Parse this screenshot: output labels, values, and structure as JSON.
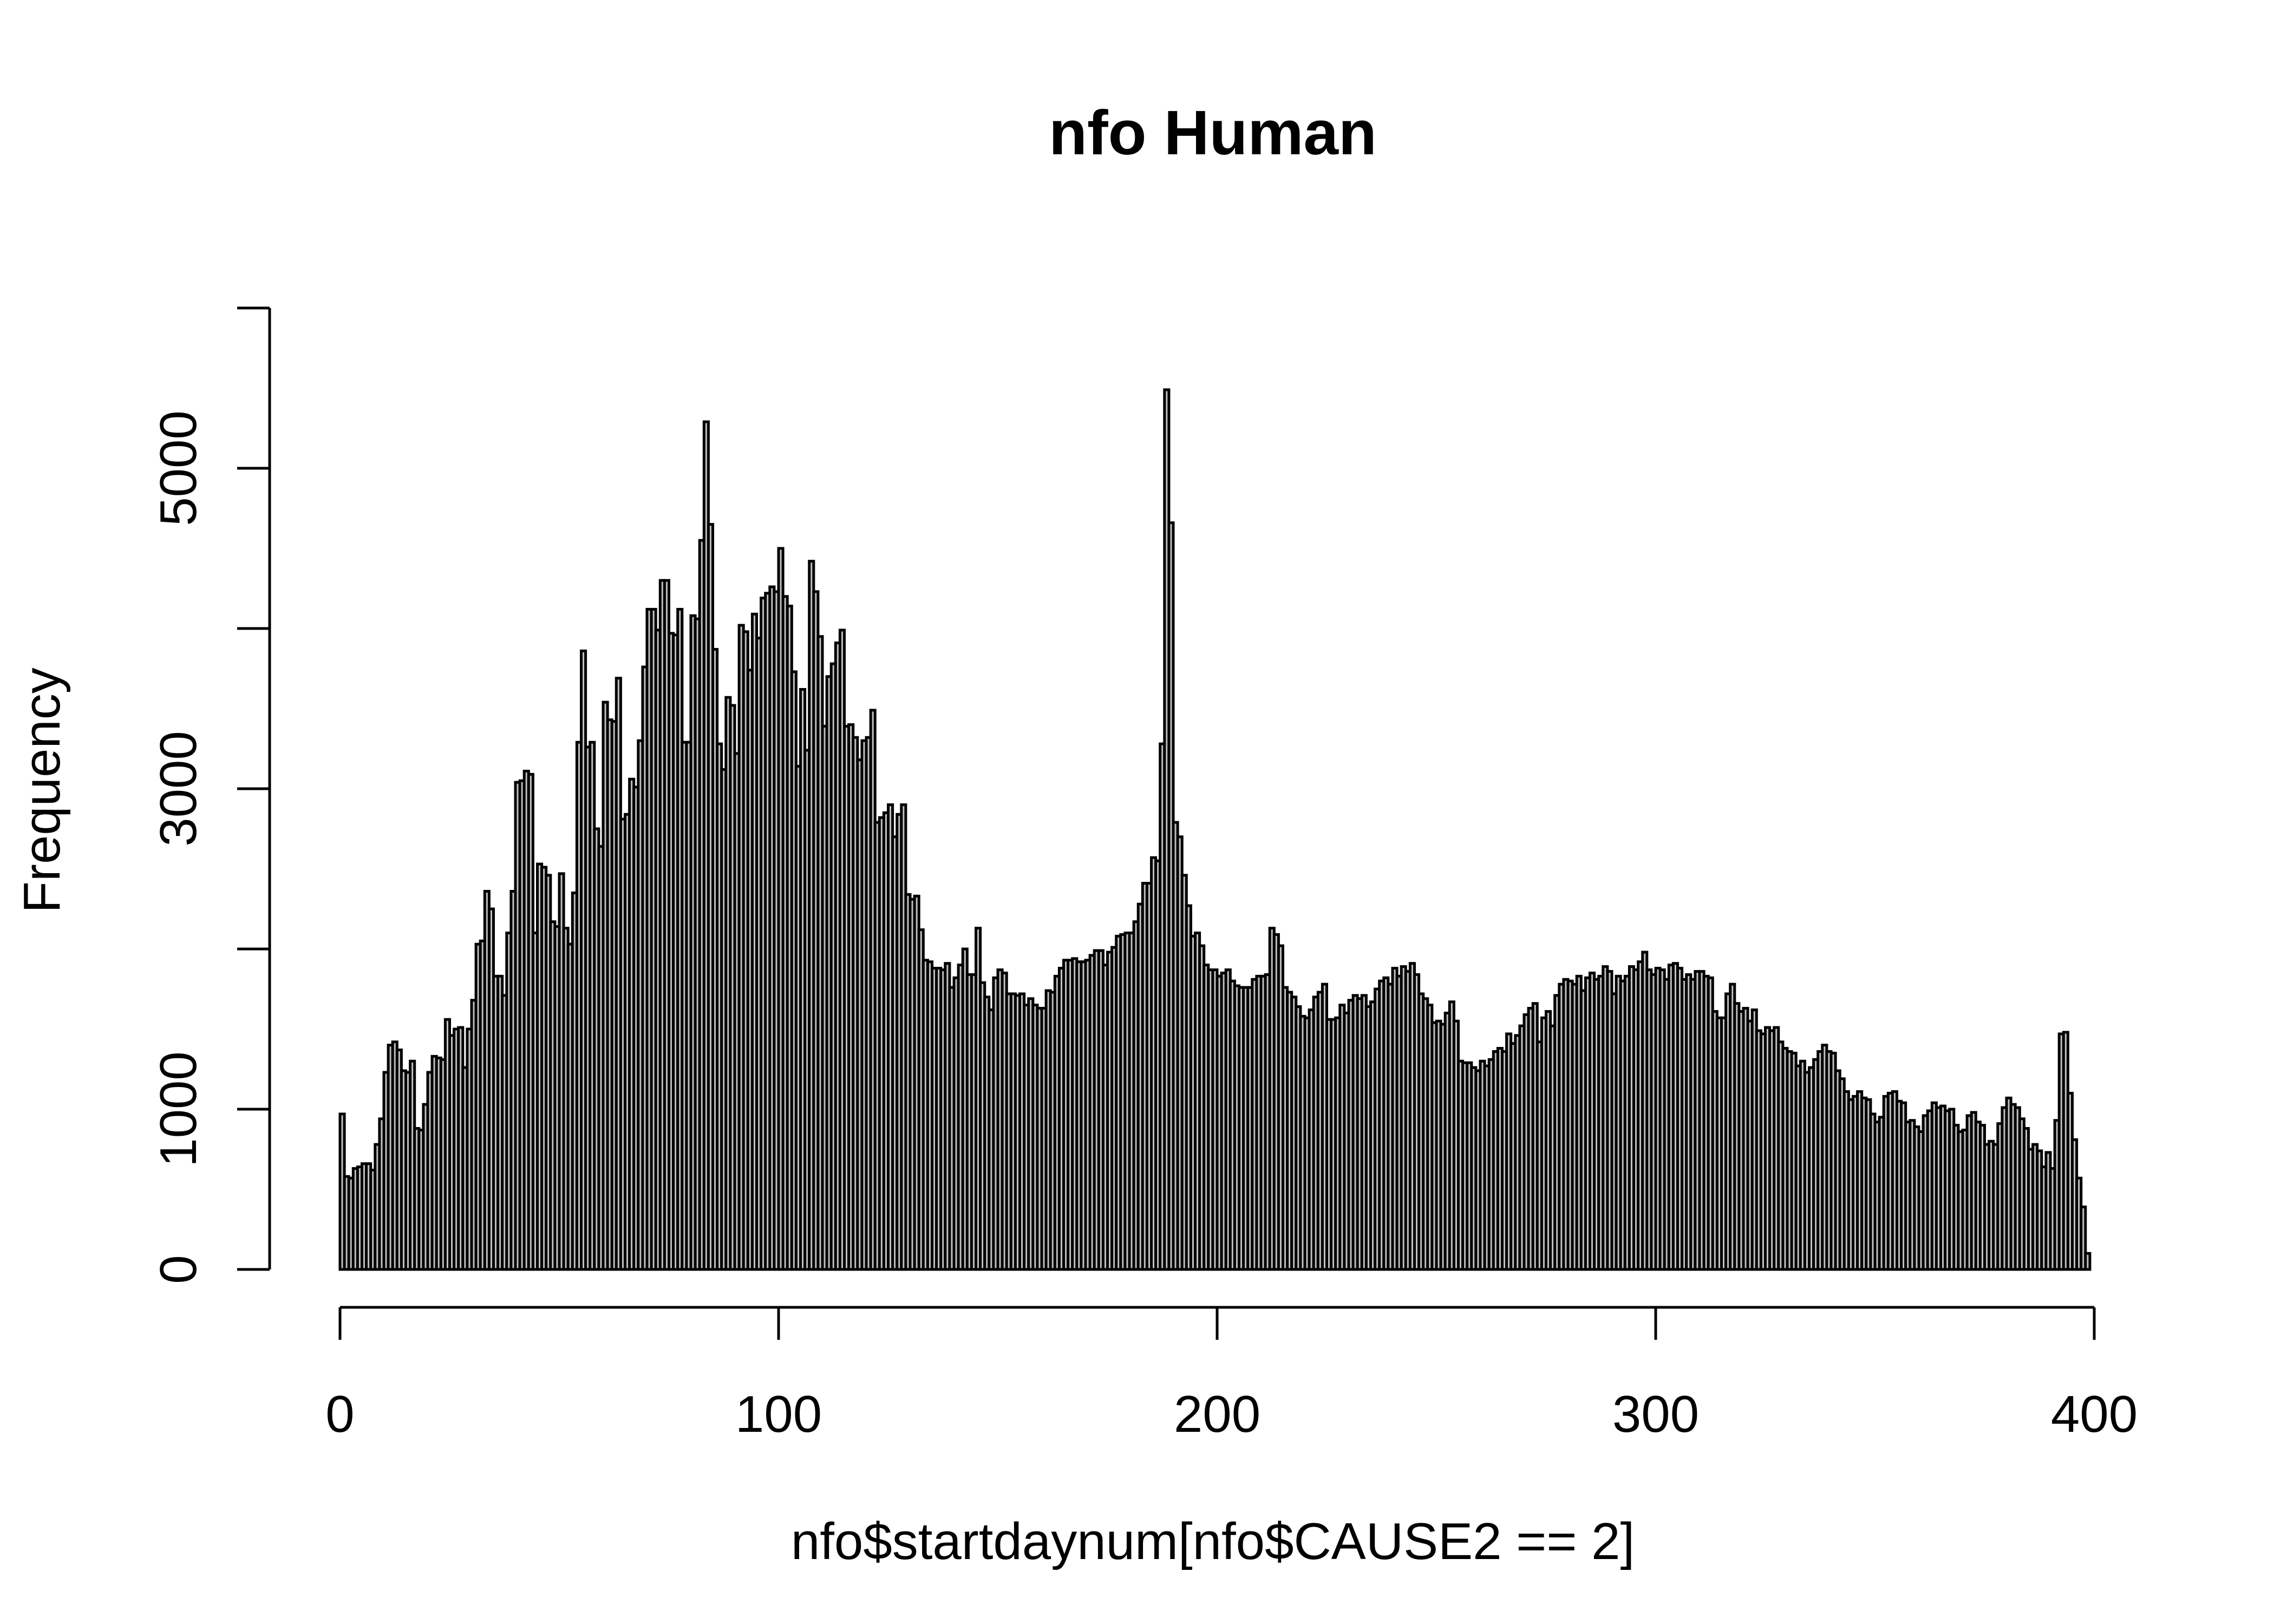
{
  "chart_data": {
    "type": "bar",
    "title": "nfo Human",
    "xlabel": "nfo$startdaynum[nfo$CAUSE2 == 2]",
    "ylabel": "Frequency",
    "xlim": [
      0,
      400
    ],
    "ylim": [
      0,
      6000
    ],
    "x_ticks": [
      "0",
      "100",
      "200",
      "300",
      "400"
    ],
    "y_ticks": [
      "0",
      "1000",
      "3000",
      "5000"
    ],
    "y_tick_values": [
      0,
      1000,
      2000,
      3000,
      4000,
      5000,
      6000
    ],
    "bin_width": 1,
    "bin_start": 0,
    "bar_color": "#bfbfbf",
    "border_color": "#000000",
    "grid": false,
    "values": [
      970,
      580,
      570,
      630,
      640,
      660,
      660,
      620,
      780,
      940,
      1230,
      1400,
      1420,
      1370,
      1240,
      1230,
      1300,
      880,
      870,
      1030,
      1230,
      1330,
      1320,
      1310,
      1560,
      1460,
      1500,
      1510,
      1260,
      1500,
      1680,
      2030,
      2050,
      2360,
      2250,
      1830,
      1830,
      1710,
      2100,
      2360,
      3040,
      3050,
      3110,
      3090,
      2100,
      2530,
      2510,
      2460,
      2170,
      2140,
      2470,
      2130,
      2030,
      2350,
      3290,
      3860,
      3260,
      3290,
      2750,
      2640,
      3540,
      3430,
      3420,
      3690,
      2810,
      2840,
      3060,
      3010,
      3300,
      3760,
      4120,
      4120,
      3990,
      4300,
      4300,
      3970,
      3960,
      4120,
      3290,
      3290,
      4080,
      4060,
      4550,
      5290,
      4650,
      3870,
      3280,
      3120,
      3570,
      3520,
      3220,
      4020,
      3980,
      3740,
      4090,
      3940,
      4190,
      4220,
      4260,
      4230,
      4500,
      4200,
      4140,
      3730,
      3140,
      3620,
      3240,
      4420,
      4230,
      3950,
      3390,
      3700,
      3780,
      3910,
      3990,
      3390,
      3400,
      3320,
      3180,
      3300,
      3320,
      3490,
      2790,
      2820,
      2850,
      2900,
      2700,
      2840,
      2900,
      2340,
      2310,
      2330,
      2120,
      1930,
      1920,
      1880,
      1880,
      1870,
      1910,
      1760,
      1820,
      1900,
      2000,
      1840,
      1840,
      2130,
      1790,
      1700,
      1620,
      1820,
      1870,
      1850,
      1720,
      1720,
      1710,
      1720,
      1650,
      1690,
      1650,
      1630,
      1630,
      1740,
      1730,
      1830,
      1880,
      1930,
      1930,
      1940,
      1920,
      1920,
      1930,
      1960,
      1990,
      1990,
      1900,
      1980,
      2010,
      2080,
      2090,
      2100,
      2100,
      2170,
      2280,
      2410,
      2410,
      2570,
      2550,
      3280,
      5490,
      4660,
      2790,
      2700,
      2460,
      2270,
      2080,
      2100,
      2020,
      1900,
      1870,
      1870,
      1830,
      1850,
      1870,
      1800,
      1770,
      1760,
      1760,
      1760,
      1810,
      1830,
      1830,
      1840,
      2130,
      2090,
      2020,
      1760,
      1730,
      1700,
      1640,
      1580,
      1570,
      1620,
      1700,
      1730,
      1780,
      1560,
      1560,
      1570,
      1650,
      1600,
      1680,
      1710,
      1690,
      1710,
      1640,
      1670,
      1750,
      1800,
      1820,
      1780,
      1880,
      1830,
      1890,
      1860,
      1910,
      1840,
      1720,
      1690,
      1650,
      1540,
      1550,
      1530,
      1600,
      1670,
      1550,
      1300,
      1290,
      1290,
      1260,
      1240,
      1300,
      1270,
      1310,
      1360,
      1380,
      1360,
      1470,
      1410,
      1460,
      1520,
      1590,
      1630,
      1660,
      1420,
      1570,
      1610,
      1520,
      1710,
      1780,
      1810,
      1800,
      1780,
      1830,
      1740,
      1820,
      1850,
      1810,
      1830,
      1890,
      1860,
      1720,
      1830,
      1800,
      1830,
      1890,
      1870,
      1920,
      1980,
      1870,
      1840,
      1880,
      1870,
      1810,
      1900,
      1910,
      1880,
      1810,
      1840,
      1810,
      1860,
      1860,
      1830,
      1820,
      1610,
      1570,
      1570,
      1720,
      1780,
      1660,
      1610,
      1630,
      1550,
      1620,
      1490,
      1470,
      1510,
      1490,
      1510,
      1420,
      1380,
      1360,
      1350,
      1270,
      1300,
      1230,
      1260,
      1310,
      1360,
      1400,
      1360,
      1350,
      1240,
      1190,
      1110,
      1060,
      1080,
      1110,
      1070,
      1060,
      970,
      920,
      950,
      1080,
      1100,
      1110,
      1050,
      1040,
      920,
      930,
      890,
      860,
      960,
      990,
      1040,
      1010,
      1020,
      990,
      1000,
      900,
      860,
      870,
      960,
      980,
      920,
      900,
      780,
      800,
      780,
      910,
      1010,
      1070,
      1030,
      1010,
      940,
      880,
      750,
      780,
      740,
      640,
      730,
      630,
      930,
      1470,
      1480,
      1100,
      810,
      570,
      390,
      100
    ]
  }
}
